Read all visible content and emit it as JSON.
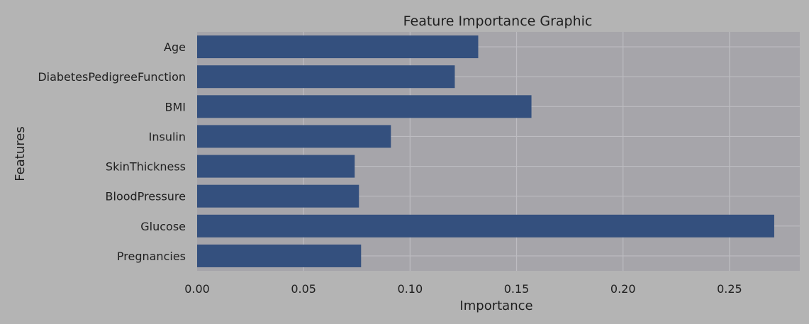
{
  "chart_data": {
    "type": "bar",
    "orientation": "horizontal",
    "title": "Feature Importance Graphic",
    "xlabel": "Importance",
    "ylabel": "Features",
    "categories": [
      "Age",
      "DiabetesPedigreeFunction",
      "BMI",
      "Insulin",
      "SkinThickness",
      "BloodPressure",
      "Glucose",
      "Pregnancies"
    ],
    "values": [
      0.132,
      0.121,
      0.157,
      0.091,
      0.074,
      0.076,
      0.271,
      0.077
    ],
    "xlim": [
      0,
      0.283
    ],
    "xticks": [
      0.0,
      0.05,
      0.1,
      0.15,
      0.2,
      0.25
    ],
    "xtick_labels": [
      "0.00",
      "0.05",
      "0.10",
      "0.15",
      "0.20",
      "0.25"
    ],
    "grid": true,
    "colors": {
      "bar": "#34507e",
      "plot_background": "#a6a5aa",
      "figure_background": "#b4b4b4",
      "grid": "#bdbcc1"
    }
  }
}
